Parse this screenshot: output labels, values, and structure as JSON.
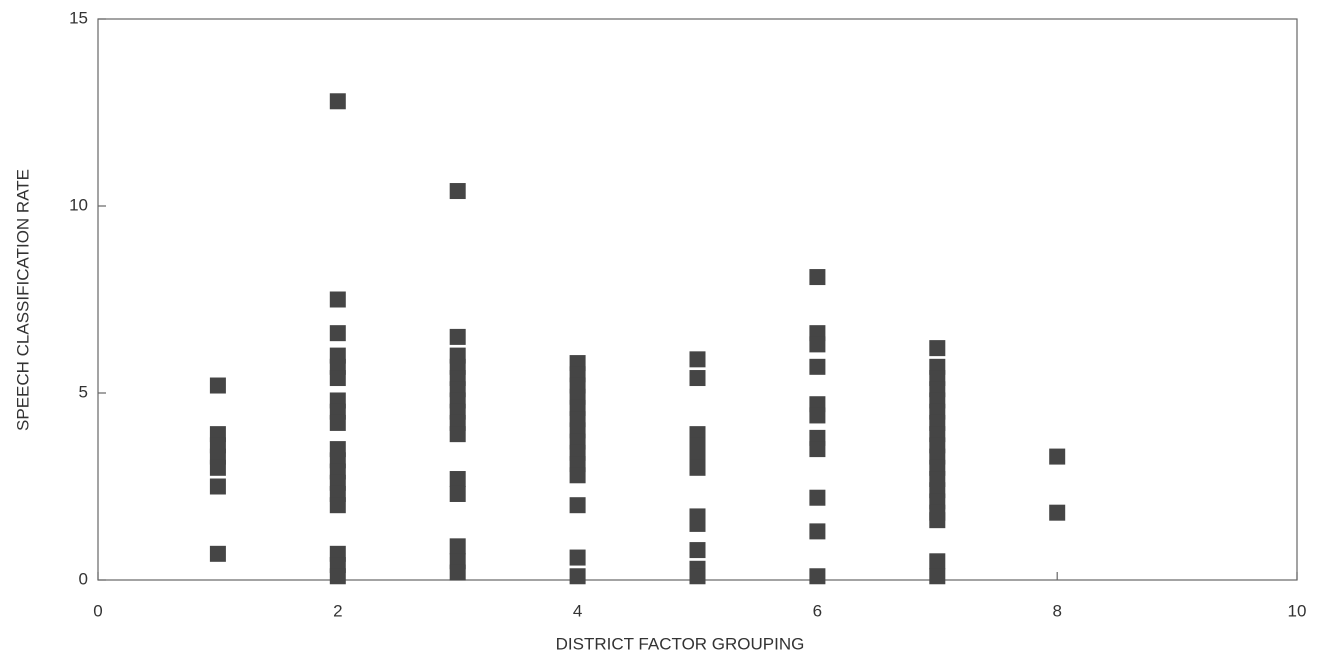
{
  "chart_data": {
    "type": "scatter",
    "xlabel": "DISTRICT FACTOR GROUPING",
    "ylabel": "SPEECH CLASSIFICATION RATE",
    "color": "#454545",
    "x": [
      1,
      1,
      1,
      1,
      1,
      1,
      1,
      2,
      2,
      2,
      2,
      2,
      2,
      2,
      2,
      2,
      2,
      2,
      2,
      2,
      2,
      2,
      2,
      2,
      2,
      3,
      3,
      3,
      3,
      3,
      3,
      3,
      3,
      3,
      3,
      3,
      3,
      3,
      3,
      3,
      4,
      4,
      4,
      4,
      4,
      4,
      4,
      4,
      4,
      4,
      4,
      4,
      4,
      4,
      5,
      5,
      5,
      5,
      5,
      5,
      5,
      5,
      5,
      5,
      5,
      6,
      6,
      6,
      6,
      6,
      6,
      6,
      6,
      6,
      6,
      6,
      7,
      7,
      7,
      7,
      7,
      7,
      7,
      7,
      7,
      7,
      7,
      7,
      7,
      7,
      7,
      7,
      7,
      7,
      8,
      8
    ],
    "values": [
      5.2,
      3.9,
      3.6,
      3.3,
      3.0,
      2.5,
      0.7,
      12.8,
      7.5,
      6.6,
      6.0,
      5.7,
      5.4,
      4.8,
      4.5,
      4.2,
      3.5,
      3.2,
      2.9,
      2.6,
      2.3,
      2.0,
      0.7,
      0.4,
      0.1,
      10.4,
      6.5,
      6.0,
      5.7,
      5.4,
      5.1,
      4.8,
      4.5,
      4.2,
      3.9,
      2.7,
      2.3,
      0.9,
      0.5,
      0.2,
      5.8,
      5.5,
      5.2,
      4.9,
      4.6,
      4.3,
      4.0,
      3.7,
      3.4,
      3.1,
      2.8,
      2.0,
      0.6,
      0.1,
      5.9,
      5.4,
      3.9,
      3.6,
      3.3,
      3.0,
      1.7,
      1.5,
      0.8,
      0.3,
      0.1,
      8.1,
      6.6,
      6.3,
      5.7,
      4.7,
      4.4,
      3.8,
      3.5,
      2.2,
      1.3,
      0.1,
      6.2,
      5.7,
      5.4,
      5.1,
      4.8,
      4.5,
      4.2,
      3.9,
      3.6,
      3.3,
      3.0,
      2.7,
      2.4,
      2.1,
      1.8,
      1.6,
      0.5,
      0.1,
      3.3,
      1.8
    ],
    "xlim": [
      0,
      10
    ],
    "xticks": [
      0,
      2,
      4,
      6,
      8,
      10
    ],
    "ylim": [
      0,
      15
    ],
    "yticks": [
      0,
      5,
      10,
      15
    ]
  }
}
